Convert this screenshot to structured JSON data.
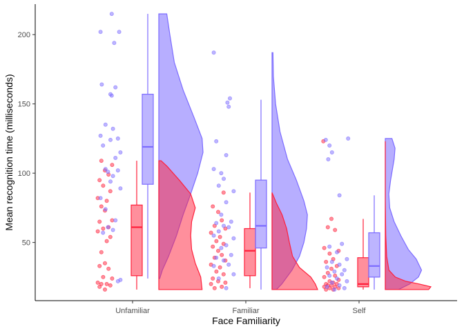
{
  "chart_data": {
    "type": "raincloud",
    "xlabel": "Face Familiarity",
    "ylabel": "Mean recognition time (milliseconds)",
    "categories": [
      "Unfamiliar",
      "Familiar",
      "Self"
    ],
    "y_ticks": [
      50,
      100,
      150,
      200
    ],
    "ylim": [
      8,
      222
    ],
    "grid": false,
    "legend": "none",
    "colors": {
      "red": "#ff1f3a",
      "blue": "#7b6bff"
    },
    "series": [
      {
        "color": "red",
        "boxes": [
          {
            "category": "Unfamiliar",
            "min": 16,
            "q1": 26,
            "median": 61,
            "q3": 77,
            "max": 109
          },
          {
            "category": "Familiar",
            "min": 17,
            "q1": 26,
            "median": 44,
            "q3": 60,
            "max": 86
          },
          {
            "category": "Self",
            "min": 16,
            "q1": 18,
            "median": 20,
            "q3": 39,
            "max": 67
          }
        ],
        "density": [
          {
            "category": "Unfamiliar",
            "ymin": 16,
            "ymax": 109,
            "y": [
              16,
              25,
              35,
              45,
              55,
              65,
              75,
              85,
              95,
              105,
              109
            ],
            "width": [
              0.95,
              0.92,
              0.8,
              0.72,
              0.7,
              0.72,
              0.8,
              0.7,
              0.45,
              0.18,
              0.05
            ]
          },
          {
            "category": "Familiar",
            "ymin": 16,
            "ymax": 86,
            "y": [
              16,
              20,
              25,
              32,
              40,
              50,
              60,
              70,
              78,
              86
            ],
            "width": [
              1.0,
              0.95,
              0.85,
              0.6,
              0.45,
              0.38,
              0.32,
              0.22,
              0.1,
              0.0
            ]
          },
          {
            "category": "Self",
            "ymin": 16,
            "ymax": 123,
            "y": [
              16,
              18,
              20,
              22,
              25,
              30,
              40,
              55,
              80,
              110,
              123
            ],
            "width": [
              0.95,
              1.0,
              0.75,
              0.45,
              0.22,
              0.08,
              0.03,
              0.01,
              0.0,
              0.0,
              0.0
            ]
          }
        ],
        "points": [
          {
            "category": "Unfamiliar",
            "y": [
              16,
              18,
              19,
              20,
              20,
              21,
              24,
              25,
              31,
              33,
              35,
              43,
              51,
              54,
              58,
              60,
              61,
              65,
              66,
              73,
              76,
              80,
              82,
              87,
              91,
              95,
              99,
              102,
              106,
              109
            ],
            "jitter": [
              0.5,
              0.2,
              0.8,
              0.3,
              0.6,
              0.1,
              0.9,
              0.4,
              0.7,
              0.2,
              0.5,
              0.3,
              0.6,
              0.8,
              0.1,
              0.4,
              0.7,
              0.2,
              0.9,
              0.5,
              0.3,
              0.6,
              0.1,
              0.8,
              0.4,
              0.2,
              0.7,
              0.5,
              0.9,
              0.3
            ]
          },
          {
            "category": "Familiar",
            "y": [
              17,
              18,
              20,
              21,
              22,
              24,
              27,
              29,
              32,
              34,
              37,
              39,
              41,
              44,
              47,
              49,
              51,
              54,
              57,
              60,
              62,
              66,
              72,
              76,
              86
            ],
            "jitter": [
              0.3,
              0.7,
              0.1,
              0.9,
              0.5,
              0.2,
              0.8,
              0.4,
              0.6,
              0.1,
              0.9,
              0.3,
              0.7,
              0.5,
              0.2,
              0.8,
              0.4,
              0.6,
              0.1,
              0.9,
              0.3,
              0.7,
              0.5,
              0.2,
              0.8
            ]
          },
          {
            "category": "Self",
            "y": [
              16,
              16,
              17,
              17,
              18,
              18,
              19,
              19,
              20,
              20,
              21,
              22,
              23,
              25,
              26,
              28,
              31,
              33,
              36,
              38,
              42,
              44,
              46,
              59,
              61,
              67,
              123
            ],
            "jitter": [
              0.2,
              0.6,
              0.9,
              0.4,
              0.1,
              0.7,
              0.5,
              0.3,
              0.8,
              0.2,
              0.6,
              0.4,
              0.9,
              0.1,
              0.7,
              0.3,
              0.5,
              0.8,
              0.2,
              0.6,
              0.4,
              0.9,
              0.1,
              0.7,
              0.3,
              0.5,
              0.05
            ]
          }
        ]
      },
      {
        "color": "blue",
        "boxes": [
          {
            "category": "Unfamiliar",
            "min": 24,
            "q1": 92,
            "median": 119,
            "q3": 157,
            "max": 215
          },
          {
            "category": "Familiar",
            "min": 16,
            "q1": 46,
            "median": 62,
            "q3": 95,
            "max": 153
          },
          {
            "category": "Self",
            "min": 16,
            "q1": 25,
            "median": 33,
            "q3": 57,
            "max": 84
          }
        ],
        "density": [
          {
            "category": "Unfamiliar",
            "ymin": 24,
            "ymax": 215,
            "y": [
              24,
              30,
              40,
              55,
              70,
              85,
              100,
              115,
              125,
              140,
              160,
              180,
              200,
              215
            ],
            "width": [
              0.02,
              0.08,
              0.22,
              0.4,
              0.55,
              0.72,
              0.88,
              1.0,
              0.98,
              0.8,
              0.55,
              0.35,
              0.25,
              0.18
            ]
          },
          {
            "category": "Familiar",
            "ymin": 16,
            "ymax": 187,
            "y": [
              16,
              20,
              30,
              40,
              50,
              60,
              70,
              80,
              95,
              110,
              130,
              150,
              170,
              187
            ],
            "width": [
              0.1,
              0.22,
              0.45,
              0.62,
              0.72,
              0.78,
              0.8,
              0.72,
              0.55,
              0.35,
              0.18,
              0.08,
              0.03,
              0.02
            ]
          },
          {
            "category": "Self",
            "ymin": 16,
            "ymax": 125,
            "y": [
              16,
              20,
              25,
              30,
              38,
              45,
              55,
              65,
              75,
              85,
              95,
              110,
              118,
              125
            ],
            "width": [
              0.3,
              0.55,
              0.75,
              0.82,
              0.7,
              0.52,
              0.35,
              0.2,
              0.1,
              0.08,
              0.12,
              0.2,
              0.22,
              0.15
            ]
          }
        ],
        "points": [
          {
            "category": "Unfamiliar",
            "y": [
              22,
              23,
              57,
              59,
              61,
              66,
              74,
              82,
              89,
              94,
              98,
              101,
              102,
              103,
              111,
              115,
              120,
              124,
              125,
              127,
              132,
              135,
              156,
              157,
              162,
              164,
              194,
              202,
              202,
              215
            ],
            "jitter": [
              0.8,
              0.9,
              0.2,
              0.6,
              0.4,
              0.7,
              0.3,
              0.1,
              0.9,
              0.5,
              0.6,
              0.4,
              0.8,
              0.3,
              0.7,
              0.9,
              0.2,
              0.5,
              0.8,
              0.1,
              0.6,
              0.3,
              0.55,
              0.5,
              0.7,
              0.15,
              0.65,
              0.1,
              0.85,
              0.55
            ]
          },
          {
            "category": "Familiar",
            "y": [
              17,
              24,
              27,
              33,
              34,
              37,
              39,
              41,
              46,
              48,
              53,
              55,
              58,
              61,
              62,
              64,
              65,
              70,
              79,
              87,
              91,
              96,
              100,
              103,
              113,
              123,
              148,
              151,
              154,
              187
            ],
            "jitter": [
              0.6,
              0.3,
              0.9,
              0.1,
              0.7,
              0.5,
              0.2,
              0.8,
              0.4,
              0.6,
              0.9,
              0.1,
              0.3,
              0.7,
              0.5,
              0.2,
              0.8,
              0.4,
              0.6,
              0.9,
              0.3,
              0.5,
              0.4,
              0.1,
              0.6,
              0.2,
              0.7,
              0.65,
              0.75,
              0.1
            ]
          },
          {
            "category": "Self",
            "y": [
              16,
              17,
              18,
              19,
              21,
              22,
              24,
              26,
              27,
              29,
              30,
              32,
              34,
              36,
              38,
              43,
              47,
              49,
              84,
              110,
              115,
              120,
              124,
              125
            ],
            "jitter": [
              0.4,
              0.8,
              0.1,
              0.6,
              0.3,
              0.9,
              0.5,
              0.2,
              0.7,
              0.4,
              0.8,
              0.1,
              0.6,
              0.3,
              0.9,
              0.5,
              0.2,
              0.7,
              0.6,
              0.15,
              0.3,
              0.2,
              0.05,
              0.95
            ]
          }
        ]
      }
    ]
  }
}
